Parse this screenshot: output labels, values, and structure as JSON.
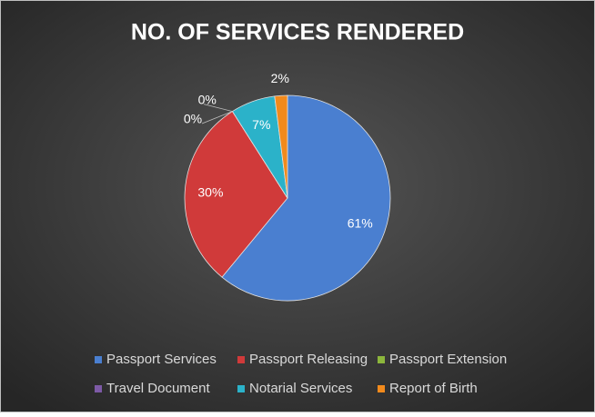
{
  "chart_data": {
    "type": "pie",
    "title": "NO. OF SERVICES RENDERED",
    "categories": [
      "Passport Services",
      "Passport Releasing",
      "Passport Extension",
      "Travel Document",
      "Notarial Services",
      "Report of Birth"
    ],
    "values": [
      61,
      30,
      0,
      0,
      7,
      2
    ],
    "value_labels": [
      "61%",
      "30%",
      "0%",
      "0%",
      "7%",
      "2%"
    ],
    "colors": [
      "#4a7fd0",
      "#d03a3a",
      "#8cb63c",
      "#7d5aa6",
      "#2bb2c9",
      "#f28a1c"
    ],
    "legend": "bottom"
  }
}
